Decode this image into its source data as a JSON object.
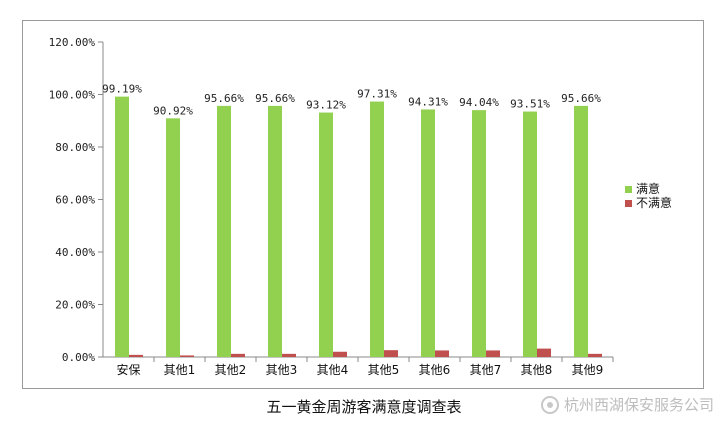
{
  "chart_data": {
    "type": "bar",
    "categories": [
      "安保",
      "其他1",
      "其他2",
      "其他3",
      "其他4",
      "其他5",
      "其他6",
      "其他7",
      "其他8",
      "其他9"
    ],
    "series": [
      {
        "name": "满意",
        "color": "#92d050",
        "values": [
          99.19,
          90.92,
          95.66,
          95.66,
          93.12,
          97.31,
          94.31,
          94.04,
          93.51,
          95.66
        ],
        "labels": [
          "99.19%",
          "90.92%",
          "95.66%",
          "95.66%",
          "93.12%",
          "97.31%",
          "94.31%",
          "94.04%",
          "93.51%",
          "95.66%"
        ]
      },
      {
        "name": "不满意",
        "color": "#c0504d",
        "values": [
          0.81,
          0.6,
          1.2,
          1.2,
          2.0,
          2.6,
          2.5,
          2.5,
          3.2,
          1.2
        ]
      }
    ],
    "ylim": [
      0,
      120
    ],
    "yticks": [
      "0.00%",
      "20.00%",
      "40.00%",
      "60.00%",
      "80.00%",
      "100.00%",
      "120.00%"
    ],
    "legend_position": "right",
    "grid": false
  },
  "caption": "五一黄金周游客满意度调查表",
  "watermark": "杭州西湖保安服务公司"
}
